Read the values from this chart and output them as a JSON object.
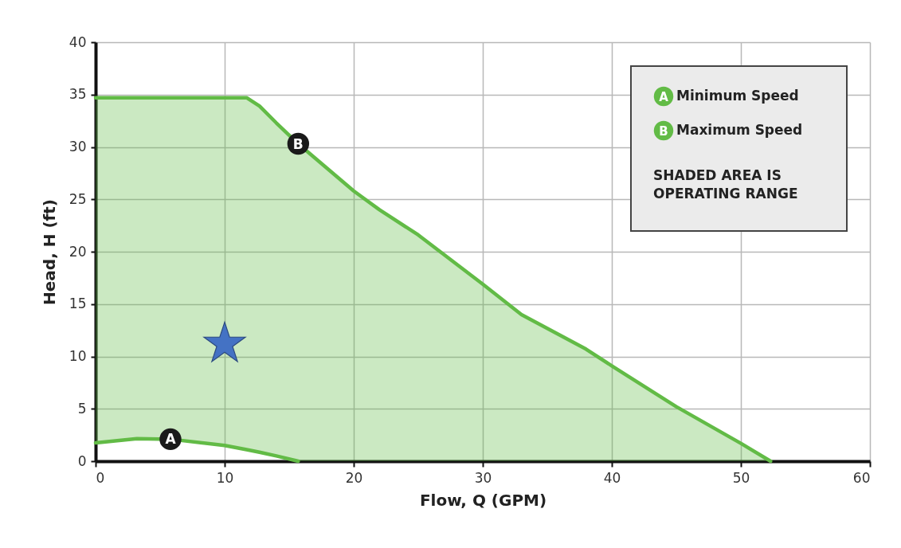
{
  "chart_data": {
    "type": "area",
    "xlabel": "Flow, Q (GPM)",
    "ylabel": "Head, H (ft)",
    "x": [
      0,
      3.2,
      5.8,
      10,
      11.7,
      12.7,
      14,
      15.7,
      20,
      22,
      25,
      30,
      33,
      38,
      40,
      45,
      50,
      52.3
    ],
    "series": [
      {
        "name": "Minimum Speed",
        "type": "line",
        "color": "#62bb46",
        "values": [
          1.75,
          2.15,
          2.1,
          1.5,
          1.1,
          0.85,
          0.5,
          0,
          null,
          null,
          null,
          null,
          null,
          null,
          null,
          null,
          null,
          null
        ]
      },
      {
        "name": "Maximum Speed",
        "color": "#62bb46",
        "values": [
          34.7,
          34.7,
          34.7,
          34.7,
          34.7,
          33.9,
          32.3,
          30.3,
          25.8,
          24.0,
          21.6,
          16.9,
          14.0,
          10.7,
          9.1,
          5.2,
          1.7,
          0
        ]
      },
      {
        "type": "scatter",
        "color": "#4472c4",
        "marker": "star",
        "x": [
          10
        ],
        "values": [
          11.2
        ]
      }
    ],
    "annotations": [
      {
        "text": "A",
        "x": 5.8,
        "y": 2.1
      },
      {
        "text": "B",
        "x": 15.7,
        "y": 30.3
      },
      "SHADED AREA IS OPERATING RANGE"
    ],
    "xlim": [
      0,
      60
    ],
    "xticks": [
      0,
      10,
      20,
      30,
      40,
      50,
      60
    ],
    "ylim": [
      0,
      40
    ],
    "yticks": [
      0,
      5,
      10,
      15,
      20,
      25,
      30,
      35,
      40
    ],
    "grid": true,
    "legend": "top right"
  }
}
